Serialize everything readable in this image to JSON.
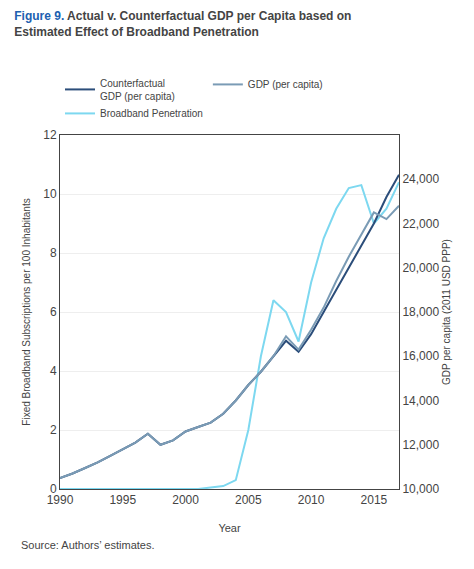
{
  "chart_data": {
    "type": "line",
    "title": "Actual v. Counterfactual GDP per Capita based on\nEstimated Effect of Broadband Penetration",
    "annotations": [
      "Figure 9.",
      "Source: Authors’ estimates."
    ],
    "x_label": "Year",
    "y_label": "Fixed Broadband Subscriptions per 100 Inhabitants",
    "y2_label": "GDP per capita (2011 USD PPP)",
    "x": [
      1990,
      1991,
      1992,
      1993,
      1994,
      1995,
      1996,
      1997,
      1998,
      1999,
      2000,
      2001,
      2002,
      2003,
      2004,
      2005,
      2006,
      2007,
      2008,
      2009,
      2010,
      2011,
      2012,
      2013,
      2014,
      2015,
      2016,
      2017
    ],
    "series": [
      {
        "name": "Counterfactual\nGDP (per capita)",
        "color": "#2b4d7a",
        "axis": "y2",
        "values": [
          10500,
          10700,
          10950,
          11200,
          11500,
          11800,
          12100,
          12500,
          12000,
          12200,
          12600,
          12800,
          13000,
          13400,
          14000,
          14700,
          15300,
          16000,
          16700,
          16200,
          17000,
          18000,
          19000,
          20000,
          21000,
          22000,
          23200,
          24200
        ]
      },
      {
        "name": "GDP (per capita)",
        "color": "#7a9bb5",
        "axis": "y2",
        "values": [
          10500,
          10700,
          10950,
          11200,
          11500,
          11800,
          12100,
          12500,
          12000,
          12200,
          12600,
          12800,
          13000,
          13400,
          14000,
          14700,
          15300,
          16000,
          16900,
          16300,
          17200,
          18200,
          19400,
          20500,
          21500,
          22500,
          22200,
          22800
        ]
      },
      {
        "name": "Broadband Penetration",
        "color": "#7dd8f0",
        "axis": "y",
        "values": [
          0,
          0,
          0,
          0,
          0,
          0,
          0,
          0,
          0,
          0,
          0,
          0,
          0.05,
          0.1,
          0.3,
          2.0,
          4.5,
          6.4,
          6.0,
          5.0,
          7.0,
          8.5,
          9.5,
          10.2,
          10.3,
          9.0,
          9.5,
          10.4
        ]
      }
    ],
    "xlim": [
      1990,
      2017
    ],
    "xticks": [
      1990,
      1995,
      2000,
      2005,
      2010,
      2015
    ],
    "ylim": [
      0,
      12
    ],
    "yticks": [
      0,
      2,
      4,
      6,
      8,
      10,
      12
    ],
    "y2lim": [
      10000,
      26000
    ],
    "y2ticks": [
      {
        "value": 10000,
        "label": "10,000"
      },
      {
        "value": 12000,
        "label": "12,000"
      },
      {
        "value": 14000,
        "label": "14,000"
      },
      {
        "value": 16000,
        "label": "16,000"
      },
      {
        "value": 18000,
        "label": "18,000"
      },
      {
        "value": 20000,
        "label": "20,000"
      },
      {
        "value": 22000,
        "label": "22,000"
      },
      {
        "value": 24000,
        "label": "24,000"
      }
    ],
    "grid": true,
    "legend": "upper left"
  }
}
